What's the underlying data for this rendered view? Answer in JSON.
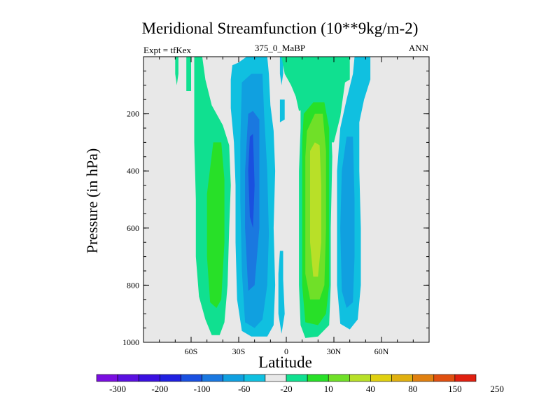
{
  "chart_data": {
    "type": "contour",
    "title": "Meridional Streamfunction (10**9kg/m-2)",
    "subtitle_left": "Expt = tfKex",
    "subtitle_center": "375_0_MaBP",
    "subtitle_right": "ANN",
    "xlabel": "Latitude",
    "ylabel": "Pressure (in hPa)",
    "xlim": [
      -90,
      90
    ],
    "ylim": [
      1000,
      0
    ],
    "x_ticks": [
      {
        "value": -60,
        "label": "60S"
      },
      {
        "value": -30,
        "label": "30S"
      },
      {
        "value": 0,
        "label": "0"
      },
      {
        "value": 30,
        "label": "30N"
      },
      {
        "value": 60,
        "label": "60N"
      }
    ],
    "y_ticks": [
      {
        "value": 200,
        "label": "200"
      },
      {
        "value": 400,
        "label": "400"
      },
      {
        "value": 600,
        "label": "600"
      },
      {
        "value": 800,
        "label": "800"
      },
      {
        "value": 1000,
        "label": "1000"
      }
    ],
    "background_color": "#e8e8e8",
    "colorbar": {
      "colors": [
        "#7a0ee0",
        "#5a10e0",
        "#3a10e0",
        "#2020e0",
        "#1a50e0",
        "#1a78e0",
        "#10a0e0",
        "#10c0e0",
        "#e8e8e8",
        "#10e090",
        "#28e028",
        "#70e028",
        "#b8e028",
        "#e0d010",
        "#e0b010",
        "#e08010",
        "#e05010",
        "#e02010"
      ],
      "labels": [
        "-300",
        "-200",
        "-100",
        "-60",
        "-20",
        "10",
        "40",
        "80",
        "150",
        "250"
      ]
    },
    "regions": [
      {
        "name": "sh-thin-lower",
        "color": "#10e090",
        "pts": [
          [
            -70,
            0
          ],
          [
            -68,
            0
          ],
          [
            -68,
            60
          ],
          [
            -69,
            100
          ],
          [
            -70,
            60
          ]
        ]
      },
      {
        "name": "sh-thin-upper",
        "color": "#10e090",
        "pts": [
          [
            -63,
            0
          ],
          [
            -60,
            0
          ],
          [
            -60,
            120
          ],
          [
            -63,
            120
          ]
        ]
      },
      {
        "name": "sh-outer",
        "color": "#10e090",
        "pts": [
          [
            -58,
            0
          ],
          [
            -53,
            0
          ],
          [
            -51,
            80
          ],
          [
            -47,
            170
          ],
          [
            -40,
            240
          ],
          [
            -36,
            310
          ],
          [
            -35,
            450
          ],
          [
            -36,
            600
          ],
          [
            -37,
            800
          ],
          [
            -39,
            930
          ],
          [
            -42,
            975
          ],
          [
            -47,
            975
          ],
          [
            -51,
            920
          ],
          [
            -55,
            840
          ],
          [
            -57,
            700
          ],
          [
            -57,
            500
          ],
          [
            -58,
            300
          ]
        ]
      },
      {
        "name": "sh-inner",
        "color": "#28e028",
        "pts": [
          [
            -46,
            300
          ],
          [
            -41,
            300
          ],
          [
            -39,
            430
          ],
          [
            -39,
            650
          ],
          [
            -41,
            850
          ],
          [
            -44,
            880
          ],
          [
            -48,
            860
          ],
          [
            -50,
            700
          ],
          [
            -50,
            480
          ]
        ]
      },
      {
        "name": "sh-ascent",
        "color": "#10c0e0",
        "pts": [
          [
            -34,
            30
          ],
          [
            -30,
            20
          ],
          [
            -25,
            0
          ],
          [
            -12,
            0
          ],
          [
            -11,
            60
          ],
          [
            -10,
            170
          ],
          [
            -8,
            260
          ],
          [
            -7,
            400
          ],
          [
            -8,
            600
          ],
          [
            -7,
            800
          ],
          [
            -8,
            940
          ],
          [
            -12,
            980
          ],
          [
            -22,
            980
          ],
          [
            -28,
            960
          ],
          [
            -31,
            850
          ],
          [
            -32,
            650
          ],
          [
            -32,
            450
          ],
          [
            -33,
            300
          ],
          [
            -35,
            180
          ],
          [
            -35,
            80
          ]
        ]
      },
      {
        "name": "sh-mid",
        "color": "#10a0e0",
        "pts": [
          [
            -28,
            90
          ],
          [
            -22,
            60
          ],
          [
            -15,
            60
          ],
          [
            -14,
            200
          ],
          [
            -12,
            400
          ],
          [
            -11,
            620
          ],
          [
            -12,
            800
          ],
          [
            -15,
            920
          ],
          [
            -20,
            950
          ],
          [
            -26,
            930
          ],
          [
            -28,
            750
          ],
          [
            -29,
            500
          ],
          [
            -29,
            300
          ]
        ]
      },
      {
        "name": "sh-core",
        "color": "#1a78e0",
        "pts": [
          [
            -24,
            200
          ],
          [
            -21,
            190
          ],
          [
            -17,
            220
          ],
          [
            -17,
            400
          ],
          [
            -17,
            600
          ],
          [
            -20,
            800
          ],
          [
            -24,
            820
          ],
          [
            -26,
            600
          ],
          [
            -26,
            400
          ]
        ]
      },
      {
        "name": "sh-core-max",
        "color": "#1a50e0",
        "pts": [
          [
            -23,
            280
          ],
          [
            -21,
            270
          ],
          [
            -20,
            450
          ],
          [
            -21,
            600
          ],
          [
            -23,
            560
          ],
          [
            -24,
            400
          ]
        ]
      },
      {
        "name": "eq-upper",
        "color": "#10c0e0",
        "pts": [
          [
            -4,
            0
          ],
          [
            -2,
            0
          ],
          [
            -2,
            60
          ],
          [
            -3,
            100
          ],
          [
            -4,
            60
          ]
        ]
      },
      {
        "name": "eq-upper-2",
        "color": "#10c0e0",
        "pts": [
          [
            -4,
            150
          ],
          [
            -1,
            150
          ],
          [
            -1,
            220
          ],
          [
            -4,
            230
          ]
        ]
      },
      {
        "name": "eq-lower",
        "color": "#10c0e0",
        "pts": [
          [
            -4,
            680
          ],
          [
            -2,
            680
          ],
          [
            -2,
            780
          ],
          [
            -1,
            900
          ],
          [
            -3,
            970
          ],
          [
            -5,
            900
          ],
          [
            -5,
            760
          ]
        ]
      },
      {
        "name": "nh-top",
        "color": "#10e090",
        "pts": [
          [
            -3,
            0
          ],
          [
            40,
            0
          ],
          [
            40,
            80
          ],
          [
            37,
            90
          ],
          [
            34,
            210
          ],
          [
            30,
            300
          ],
          [
            27,
            300
          ],
          [
            24,
            230
          ],
          [
            18,
            200
          ],
          [
            12,
            180
          ],
          [
            8,
            190
          ],
          [
            6,
            140
          ],
          [
            3,
            100
          ],
          [
            -1,
            60
          ],
          [
            -2,
            30
          ]
        ]
      },
      {
        "name": "nh-cell-outer",
        "color": "#10e090",
        "pts": [
          [
            9,
            170
          ],
          [
            17,
            130
          ],
          [
            25,
            130
          ],
          [
            28,
            200
          ],
          [
            29,
            350
          ],
          [
            28,
            600
          ],
          [
            28,
            800
          ],
          [
            27,
            940
          ],
          [
            20,
            980
          ],
          [
            12,
            985
          ],
          [
            9,
            940
          ],
          [
            8,
            800
          ],
          [
            8,
            600
          ],
          [
            8,
            400
          ],
          [
            9,
            250
          ]
        ]
      },
      {
        "name": "nh-cell-1",
        "color": "#28e028",
        "pts": [
          [
            11,
            200
          ],
          [
            17,
            160
          ],
          [
            24,
            160
          ],
          [
            27,
            250
          ],
          [
            27,
            500
          ],
          [
            27,
            800
          ],
          [
            25,
            900
          ],
          [
            20,
            940
          ],
          [
            12,
            930
          ],
          [
            10,
            800
          ],
          [
            10,
            500
          ],
          [
            10,
            300
          ]
        ]
      },
      {
        "name": "nh-cell-2",
        "color": "#70e028",
        "pts": [
          [
            13,
            260
          ],
          [
            18,
            200
          ],
          [
            23,
            200
          ],
          [
            25,
            330
          ],
          [
            25,
            600
          ],
          [
            24,
            800
          ],
          [
            21,
            850
          ],
          [
            15,
            850
          ],
          [
            12,
            760
          ],
          [
            12,
            500
          ],
          [
            12,
            350
          ]
        ]
      },
      {
        "name": "nh-cell-3",
        "color": "#b8e028",
        "pts": [
          [
            15,
            330
          ],
          [
            18,
            300
          ],
          [
            21,
            310
          ],
          [
            22,
            450
          ],
          [
            22,
            650
          ],
          [
            20,
            770
          ],
          [
            17,
            770
          ],
          [
            15,
            650
          ],
          [
            15,
            450
          ]
        ]
      },
      {
        "name": "nh-descent-outer",
        "color": "#10c0e0",
        "pts": [
          [
            43,
            0
          ],
          [
            53,
            0
          ],
          [
            53,
            80
          ],
          [
            49,
            150
          ],
          [
            46,
            230
          ],
          [
            46,
            400
          ],
          [
            47,
            600
          ],
          [
            47,
            800
          ],
          [
            45,
            920
          ],
          [
            40,
            955
          ],
          [
            34,
            935
          ],
          [
            32,
            800
          ],
          [
            32,
            600
          ],
          [
            32,
            400
          ],
          [
            34,
            250
          ],
          [
            38,
            150
          ],
          [
            42,
            60
          ]
        ]
      },
      {
        "name": "nh-descent-inner",
        "color": "#10a0e0",
        "pts": [
          [
            38,
            280
          ],
          [
            42,
            280
          ],
          [
            43,
            500
          ],
          [
            43,
            700
          ],
          [
            42,
            860
          ],
          [
            38,
            880
          ],
          [
            35,
            820
          ],
          [
            34,
            600
          ],
          [
            35,
            400
          ]
        ]
      }
    ]
  }
}
